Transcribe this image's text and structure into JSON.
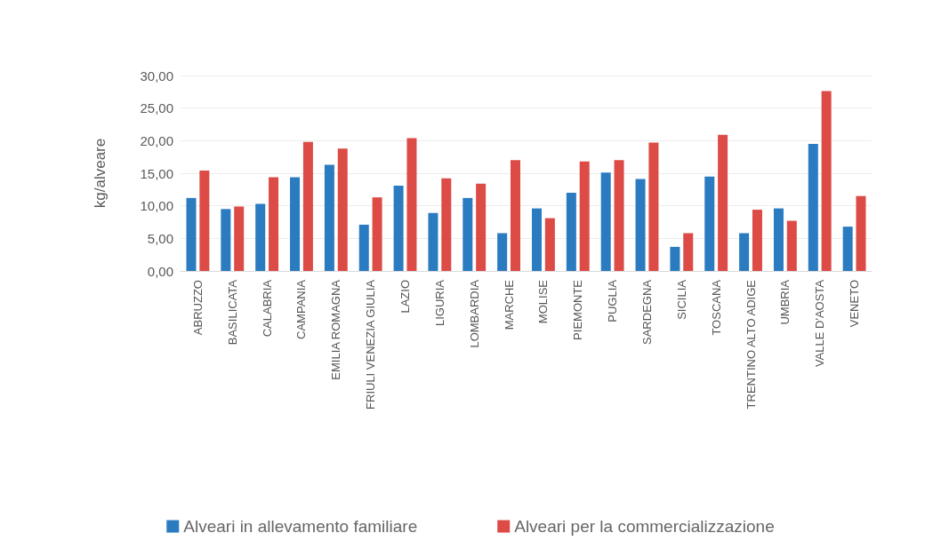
{
  "chart_data": {
    "type": "bar",
    "ylabel": "kg/alveare",
    "categories": [
      "ABRUZZO",
      "BASILICATA",
      "CALABRIA",
      "CAMPANIA",
      "EMILIA ROMAGNA",
      "FRIULI VENEZIA GIULIA",
      "LAZIO",
      "LIGURIA",
      "LOMBARDIA",
      "MARCHE",
      "MOLISE",
      "PIEMONTE",
      "PUGLIA",
      "SARDEGNA",
      "SICILIA",
      "TOSCANA",
      "TRENTINO ALTO ADIGE",
      "UMBRIA",
      "VALLE D'AOSTA",
      "VENETO"
    ],
    "series": [
      {
        "name": "Alveari in allevamento familiare",
        "color": "#2a7bc0",
        "values": [
          11.2,
          9.5,
          10.3,
          14.4,
          16.3,
          7.1,
          13.1,
          8.9,
          11.2,
          5.8,
          9.6,
          12.0,
          15.1,
          14.1,
          3.7,
          14.5,
          5.8,
          9.6,
          19.5,
          6.8
        ]
      },
      {
        "name": "Alveari per la commercializzazione",
        "color": "#dc4b46",
        "values": [
          15.4,
          9.9,
          14.4,
          19.8,
          18.8,
          11.3,
          20.4,
          14.2,
          13.4,
          17.0,
          8.1,
          16.8,
          17.0,
          19.7,
          5.8,
          20.9,
          9.4,
          7.7,
          27.6,
          11.5
        ]
      }
    ],
    "ylim": [
      0,
      30
    ],
    "yticks": [
      {
        "value": 0,
        "label": "0,00"
      },
      {
        "value": 5,
        "label": "5,00"
      },
      {
        "value": 10,
        "label": "10,00"
      },
      {
        "value": 15,
        "label": "15,00"
      },
      {
        "value": 20,
        "label": "20,00"
      },
      {
        "value": 25,
        "label": "25,00"
      },
      {
        "value": 30,
        "label": "30,00"
      }
    ],
    "grid": "y",
    "legend": "bottom"
  }
}
